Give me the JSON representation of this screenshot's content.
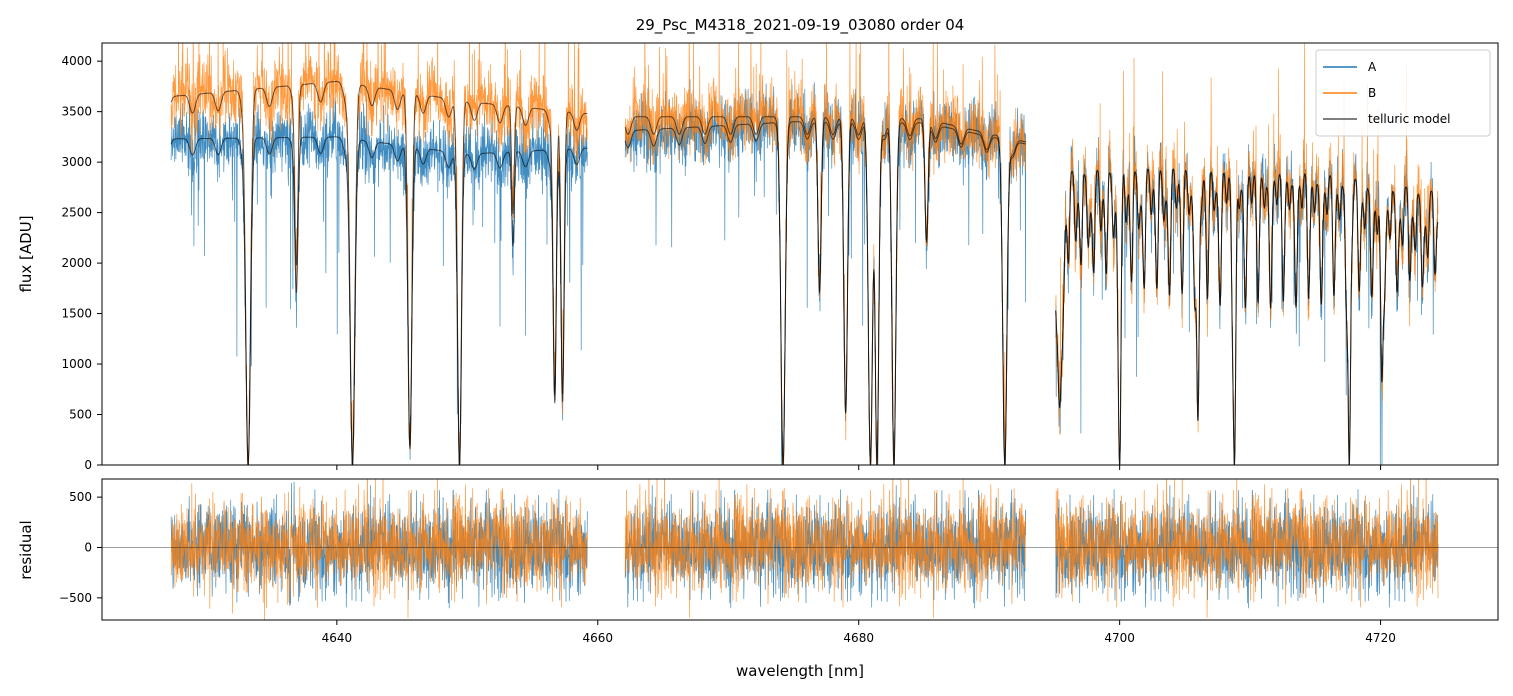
{
  "chart_data": [
    {
      "type": "line",
      "panel": "flux",
      "title": "29_Psc_M4318_2021-09-19_03080  order 04",
      "xlabel": "",
      "ylabel": "flux [ADU]",
      "xlim": [
        4622,
        4729
      ],
      "ylim": [
        0,
        4180
      ],
      "yticks": [
        0,
        500,
        1000,
        1500,
        2000,
        2500,
        3000,
        3500,
        4000
      ],
      "xticks": [
        4640,
        4660,
        4680,
        4700,
        4720
      ],
      "segments": [
        [
          4627.3,
          4659.2
        ],
        [
          4662.1,
          4692.8
        ],
        [
          4695.1,
          4724.4
        ]
      ],
      "legend": {
        "position": "top-right",
        "entries": [
          "A",
          "B",
          "telluric model"
        ]
      },
      "series": [
        {
          "name": "A",
          "color": "#1f77b4",
          "continuum": [
            [
              4627.3,
              3230
            ],
            [
              4640,
              3250
            ],
            [
              4650,
              3080
            ],
            [
              4659.2,
              3140
            ],
            [
              4662.1,
              3310
            ],
            [
              4675,
              3400
            ],
            [
              4685,
              3390
            ],
            [
              4692.8,
              3180
            ],
            [
              4695.1,
              2900
            ],
            [
              4705,
              2950
            ],
            [
              4715,
              2900
            ],
            [
              4724.4,
              2700
            ]
          ]
        },
        {
          "name": "B",
          "color": "#ff7f0e",
          "continuum": [
            [
              4627.3,
              3650
            ],
            [
              4640,
              3800
            ],
            [
              4650,
              3600
            ],
            [
              4659.2,
              3480
            ],
            [
              4662.1,
              3450
            ],
            [
              4675,
              3450
            ],
            [
              4685,
              3430
            ],
            [
              4692.8,
              3200
            ],
            [
              4695.1,
              2900
            ],
            [
              4705,
              2950
            ],
            [
              4715,
              2900
            ],
            [
              4724.4,
              2700
            ]
          ]
        },
        {
          "name": "telluric model",
          "color": "#000000"
        }
      ],
      "absorption_lines": [
        {
          "x": 4633.2,
          "depth": 1.0,
          "width": 0.18
        },
        {
          "x": 4636.9,
          "depth": 0.45,
          "width": 0.12
        },
        {
          "x": 4641.2,
          "depth": 1.0,
          "width": 0.18
        },
        {
          "x": 4645.6,
          "depth": 0.95,
          "width": 0.15
        },
        {
          "x": 4649.4,
          "depth": 1.0,
          "width": 0.15
        },
        {
          "x": 4653.5,
          "depth": 0.3,
          "width": 0.1
        },
        {
          "x": 4656.7,
          "depth": 0.8,
          "width": 0.12
        },
        {
          "x": 4657.3,
          "depth": 0.8,
          "width": 0.12
        },
        {
          "x": 4674.2,
          "depth": 1.0,
          "width": 0.16
        },
        {
          "x": 4677.0,
          "depth": 0.5,
          "width": 0.12
        },
        {
          "x": 4679.0,
          "depth": 0.85,
          "width": 0.14
        },
        {
          "x": 4680.9,
          "depth": 1.0,
          "width": 0.16
        },
        {
          "x": 4681.4,
          "depth": 1.0,
          "width": 0.14
        },
        {
          "x": 4682.7,
          "depth": 1.0,
          "width": 0.15
        },
        {
          "x": 4685.2,
          "depth": 0.35,
          "width": 0.12
        },
        {
          "x": 4691.2,
          "depth": 1.0,
          "width": 0.16
        },
        {
          "x": 4695.4,
          "depth": 0.8,
          "width": 0.2
        },
        {
          "x": 4700.0,
          "depth": 1.0,
          "width": 0.1
        },
        {
          "x": 4706.0,
          "depth": 0.85,
          "width": 0.1
        },
        {
          "x": 4708.8,
          "depth": 1.0,
          "width": 0.1
        },
        {
          "x": 4717.6,
          "depth": 1.0,
          "width": 0.1
        },
        {
          "x": 4720.1,
          "depth": 0.7,
          "width": 0.1
        }
      ]
    },
    {
      "type": "line",
      "panel": "residual",
      "title": "",
      "xlabel": "wavelength [nm]",
      "ylabel": "residual",
      "xlim": [
        4622,
        4729
      ],
      "ylim": [
        -720,
        680
      ],
      "yticks": [
        -500,
        0,
        500
      ],
      "xticks": [
        4640,
        4660,
        4680,
        4700,
        4720
      ],
      "xtick_labels": [
        "4640",
        "4660",
        "4680",
        "4700",
        "4720"
      ],
      "segments": [
        [
          4627.3,
          4659.2
        ],
        [
          4662.1,
          4692.8
        ],
        [
          4695.1,
          4724.4
        ]
      ],
      "zero_line": 0,
      "series": [
        {
          "name": "A",
          "color": "#1f77b4",
          "typical_amplitude": 220
        },
        {
          "name": "B",
          "color": "#ff7f0e",
          "typical_amplitude": 230
        }
      ]
    }
  ]
}
